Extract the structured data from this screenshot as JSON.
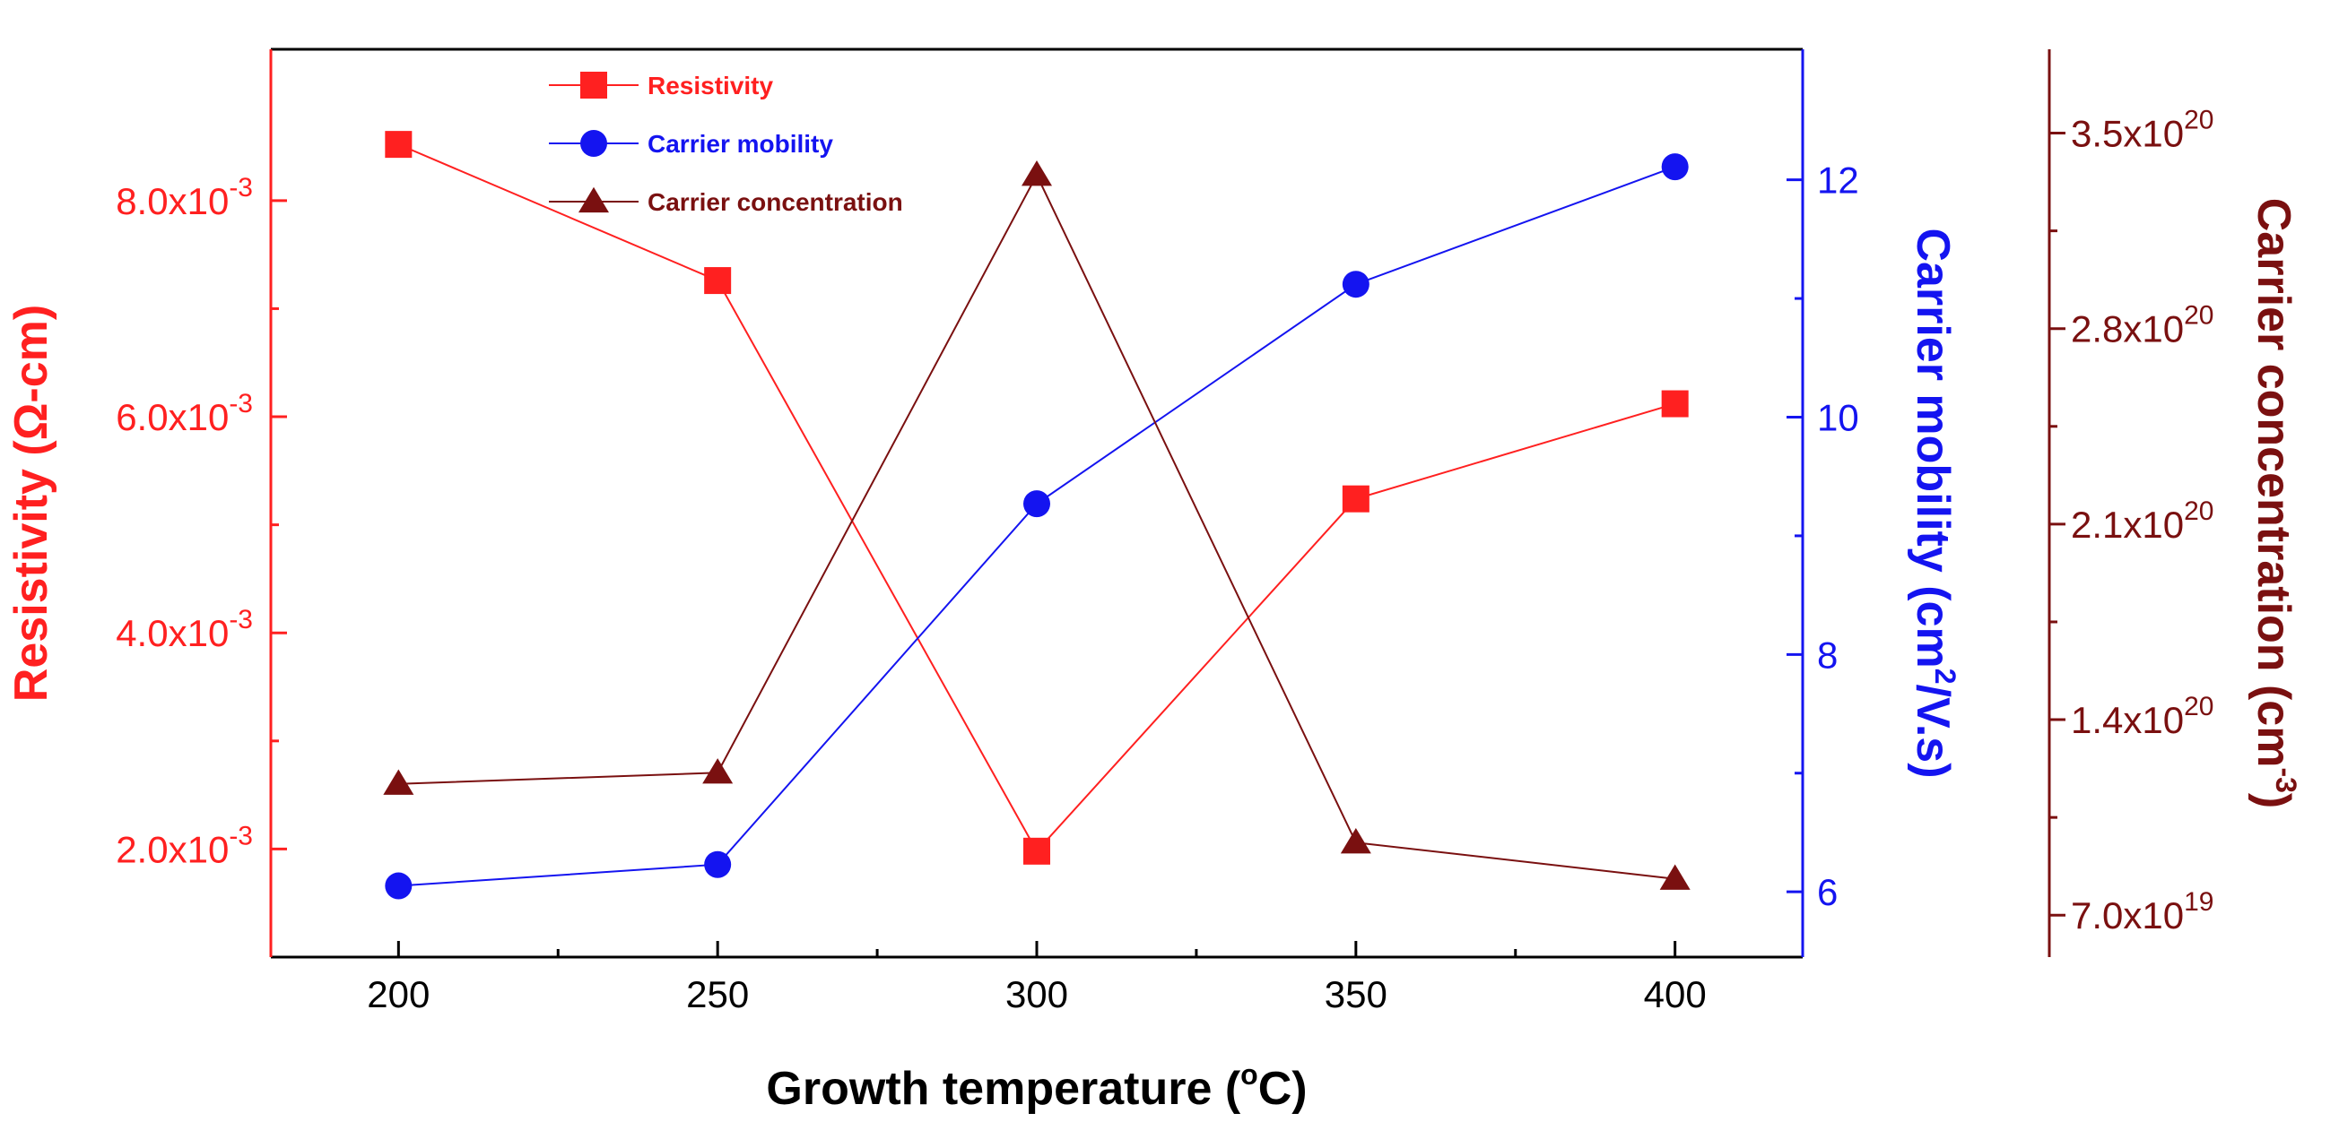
{
  "chart_data": {
    "type": "line",
    "x": [
      200,
      250,
      300,
      350,
      400
    ],
    "xlabel": "Growth temperature (°C)",
    "xlim": [
      180,
      420
    ],
    "xticks": [
      "200",
      "250",
      "300",
      "350",
      "400"
    ],
    "axes": {
      "left": {
        "label": "Resistivity (Ω-cm)",
        "color": "#ff2020",
        "ylim": [
          0.001,
          0.0094
        ],
        "ticks": [
          {
            "value": 0.002,
            "mantissa": "2.0x10",
            "exp": "-3"
          },
          {
            "value": 0.004,
            "mantissa": "4.0x10",
            "exp": "-3"
          },
          {
            "value": 0.006,
            "mantissa": "6.0x10",
            "exp": "-3"
          },
          {
            "value": 0.008,
            "mantissa": "8.0x10",
            "exp": "-3"
          }
        ]
      },
      "right1": {
        "label": "Carrier mobility (cm²/V.s)",
        "color": "#1414f0",
        "ylim": [
          5.45,
          13.1
        ],
        "ticks": [
          {
            "value": 6,
            "label": "6"
          },
          {
            "value": 8,
            "label": "8"
          },
          {
            "value": 10,
            "label": "10"
          },
          {
            "value": 12,
            "label": "12"
          }
        ]
      },
      "right2": {
        "label": "Carrier concentration (cm⁻³)",
        "color": "#7a1010",
        "ylim": [
          5.5e+19,
          3.8e+20
        ],
        "ticks": [
          {
            "value": 7e+19,
            "mantissa": "7.0x10",
            "exp": "19"
          },
          {
            "value": 1.4e+20,
            "mantissa": "1.4x10",
            "exp": "20"
          },
          {
            "value": 2.1e+20,
            "mantissa": "2.1x10",
            "exp": "20"
          },
          {
            "value": 2.8e+20,
            "mantissa": "2.8x10",
            "exp": "20"
          },
          {
            "value": 3.5e+20,
            "mantissa": "3.5x10",
            "exp": "20"
          }
        ]
      }
    },
    "series": [
      {
        "name": "Resistivity",
        "axis": "left",
        "marker": "square",
        "color": "#ff2020",
        "values": [
          0.00852,
          0.00726,
          0.00198,
          0.00524,
          0.00612
        ]
      },
      {
        "name": "Carrier mobility",
        "axis": "right1",
        "marker": "circle",
        "color": "#1414f0",
        "values": [
          6.05,
          6.23,
          9.27,
          11.12,
          12.11
        ]
      },
      {
        "name": "Carrier concentration",
        "axis": "right2",
        "marker": "triangle",
        "color": "#7a1010",
        "values": [
          1.17e+20,
          1.21e+20,
          3.35e+20,
          9.6e+19,
          8.3e+19
        ]
      }
    ],
    "legend_position": "top-left",
    "grid": false
  }
}
